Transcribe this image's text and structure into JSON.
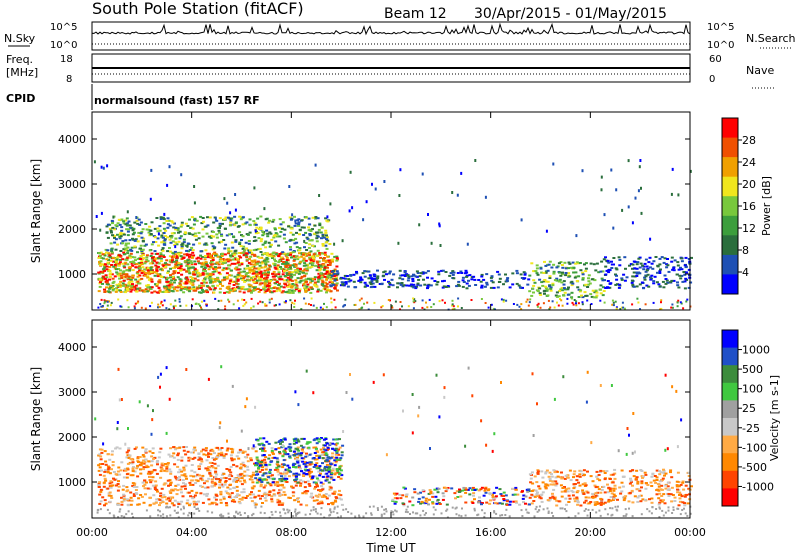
{
  "header": {
    "station_title": "South Pole Station (fitACF)",
    "beam_label": "Beam 12",
    "date_range": "30/Apr/2015 - 01/May/2015"
  },
  "labels": {
    "nsky": "N.Sky",
    "nsky_hi": "10^5",
    "nsky_lo": "10^0",
    "nsearch": "N.Search",
    "nsearch_hi": "10^5",
    "nsearch_lo": "10^0",
    "freq": "Freq.",
    "freq_unit": "[MHz]",
    "freq_hi": "18",
    "freq_lo": "8",
    "nave": "Nave",
    "nave_hi": "60",
    "nave_lo": "0",
    "cpid": "CPID",
    "cpid_value": "normalsound (fast) 157 RF"
  },
  "colors": {
    "power_scale": [
      "#0000ff",
      "#1e50b4",
      "#2a6e3c",
      "#3c9e3c",
      "#78c83c",
      "#f0e61e",
      "#f0a000",
      "#f05000",
      "#ff0000"
    ],
    "velocity_scale": [
      "#ff0000",
      "#ff4400",
      "#ff8800",
      "#ffaa44",
      "#c8c8c8",
      "#a0a0a0",
      "#40c840",
      "#3c8c3c",
      "#2050c8",
      "#0000ff"
    ]
  },
  "chart_data": [
    {
      "type": "heatmap",
      "name": "power-panel",
      "ylabel": "Slant Range [km]",
      "yticks": [
        "4000",
        "3000",
        "2000",
        "1000"
      ],
      "ytick_values": [
        4000,
        3000,
        2000,
        1000
      ],
      "ylim": [
        200,
        4600
      ],
      "xlim_hours": [
        0,
        24
      ],
      "xtick_hours": [
        0,
        4,
        8,
        12,
        16,
        20,
        24
      ],
      "colorbar": {
        "label": "Power [dB]",
        "ticks": [
          "28",
          "24",
          "20",
          "16",
          "12",
          "8",
          "4"
        ]
      },
      "echo_regions": [
        {
          "t0": 0.2,
          "t1": 9.8,
          "r0": 600,
          "r1": 1500,
          "level": "high"
        },
        {
          "t0": 0.5,
          "t1": 9.5,
          "r0": 1500,
          "r1": 2300,
          "level": "mid"
        },
        {
          "t0": 9.5,
          "t1": 17.5,
          "r0": 700,
          "r1": 1100,
          "level": "low"
        },
        {
          "t0": 17.5,
          "t1": 20.5,
          "r0": 500,
          "r1": 1300,
          "level": "mid"
        },
        {
          "t0": 20.5,
          "t1": 24,
          "r0": 700,
          "r1": 1400,
          "level": "low"
        }
      ]
    },
    {
      "type": "heatmap",
      "name": "velocity-panel",
      "ylabel": "Slant Range [km]",
      "yticks": [
        "4000",
        "3000",
        "2000",
        "1000"
      ],
      "ytick_values": [
        4000,
        3000,
        2000,
        1000
      ],
      "ylim": [
        200,
        4600
      ],
      "xlim_hours": [
        0,
        24
      ],
      "xtick_hours": [
        0,
        4,
        8,
        12,
        16,
        20,
        24
      ],
      "xticks": [
        "00:00",
        "04:00",
        "08:00",
        "12:00",
        "16:00",
        "20:00",
        "00:00"
      ],
      "xlabel": "Time UT",
      "colorbar": {
        "label": "Velocity [m s-1]",
        "ticks": [
          "1000",
          "500",
          "100",
          "25",
          "-25",
          "-100",
          "-500",
          "-1000"
        ]
      },
      "echo_regions": [
        {
          "t0": 0.2,
          "t1": 10.0,
          "r0": 500,
          "r1": 1800,
          "level": "negative"
        },
        {
          "t0": 6.5,
          "t1": 10.0,
          "r0": 1000,
          "r1": 2000,
          "level": "positive"
        },
        {
          "t0": 12.0,
          "t1": 17.5,
          "r0": 500,
          "r1": 900,
          "level": "mixed"
        },
        {
          "t0": 17.5,
          "t1": 24,
          "r0": 500,
          "r1": 1300,
          "level": "negative"
        }
      ]
    }
  ]
}
